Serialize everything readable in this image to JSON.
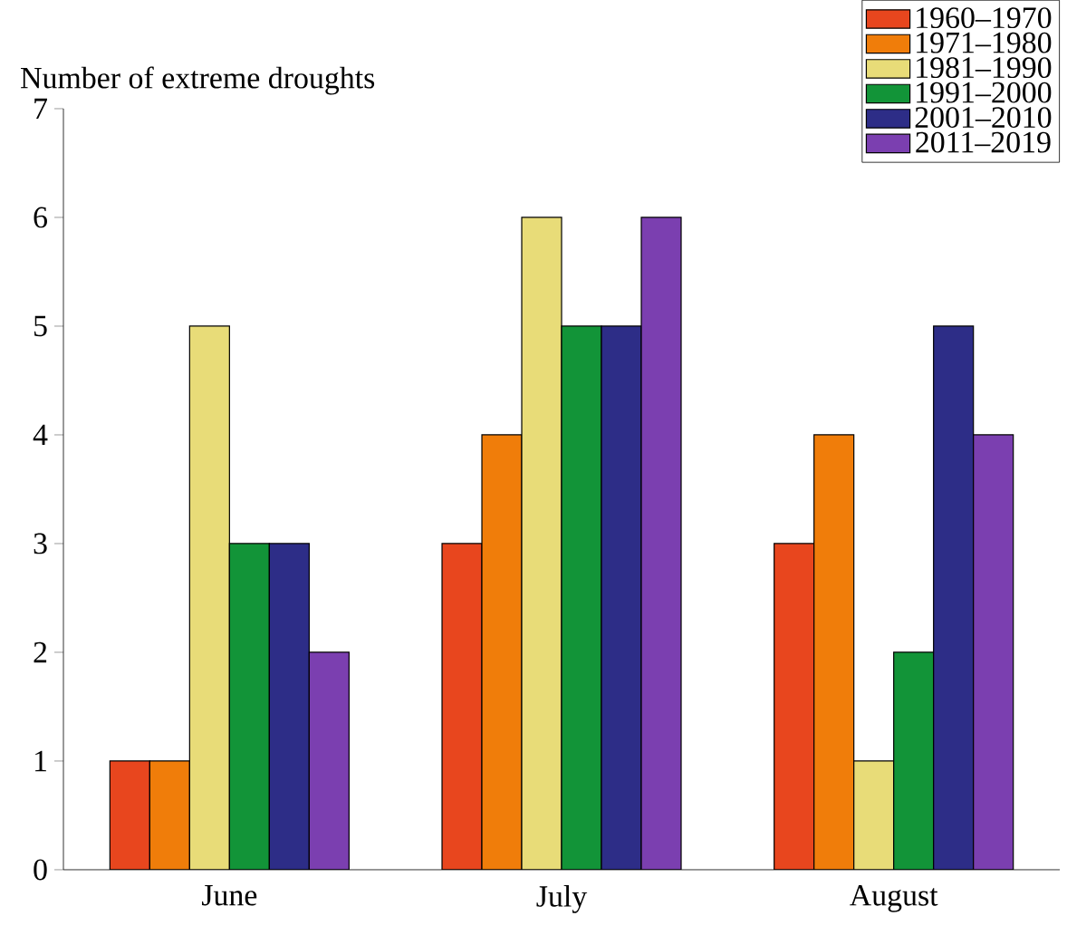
{
  "chart_data": {
    "type": "bar",
    "ylabel": "Number of extreme droughts",
    "categories": [
      "June",
      "July",
      "August"
    ],
    "series": [
      {
        "name": "1960–1970",
        "color": "#e8461e",
        "values": [
          1,
          3,
          3
        ]
      },
      {
        "name": "1971–1980",
        "color": "#f07d0a",
        "values": [
          1,
          4,
          4
        ]
      },
      {
        "name": "1981–1990",
        "color": "#e8dc78",
        "values": [
          5,
          6,
          1
        ]
      },
      {
        "name": "1991–2000",
        "color": "#129438",
        "values": [
          3,
          5,
          2
        ]
      },
      {
        "name": "2001–2010",
        "color": "#2d2d87",
        "values": [
          3,
          5,
          5
        ]
      },
      {
        "name": "2011–2019",
        "color": "#7b3fb0",
        "values": [
          2,
          6,
          4
        ]
      }
    ],
    "ylim": [
      0,
      7
    ],
    "yticks": [
      0,
      1,
      2,
      3,
      4,
      5,
      6,
      7
    ],
    "legend": "top right"
  }
}
